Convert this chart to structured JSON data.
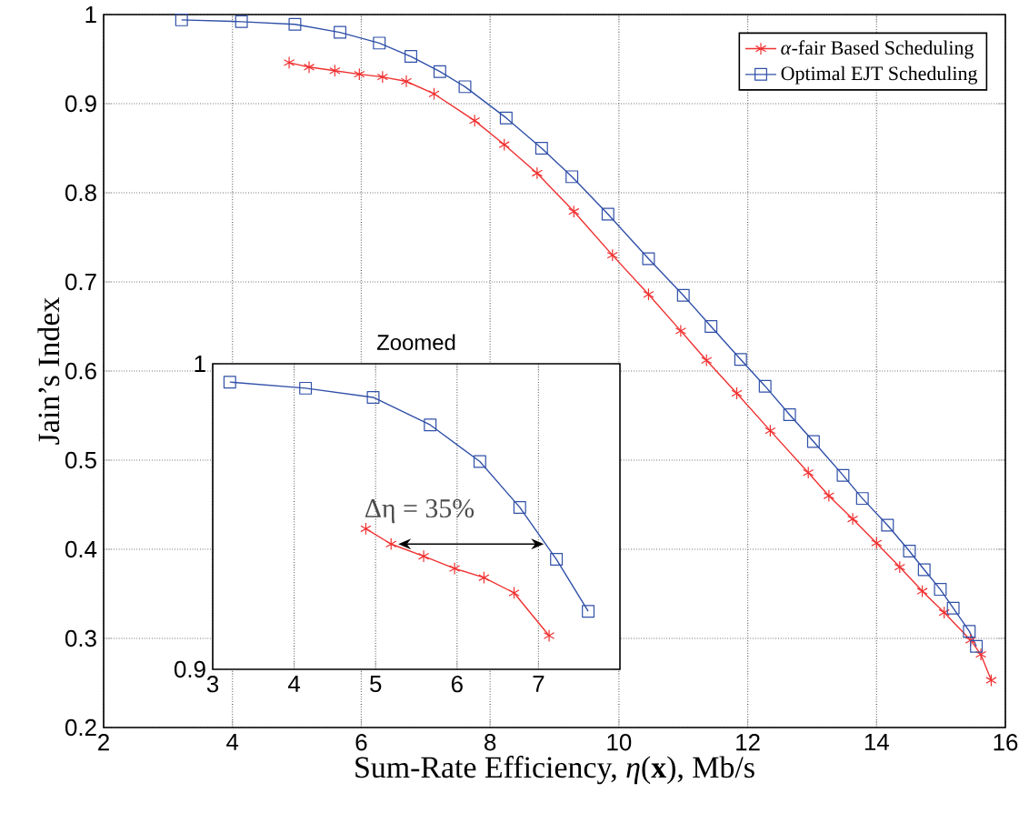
{
  "chart_data": [
    {
      "type": "line",
      "xlabel": "Sum-Rate Efficiency, *η*(**x**), Mb/s",
      "ylabel": "Jain’s Index",
      "xlim": [
        2,
        16
      ],
      "ylim": [
        0.2,
        1
      ],
      "xticks": [
        2,
        4,
        6,
        8,
        10,
        12,
        14,
        16
      ],
      "yticks": [
        0.2,
        0.3,
        0.4,
        0.5,
        0.6,
        0.7,
        0.8,
        0.9,
        1
      ],
      "grid": true,
      "legend": "top right",
      "series": [
        {
          "name": "*α*-fair Based Scheduling",
          "color": "#f03030",
          "marker": "cross",
          "x": [
            4.88,
            5.19,
            5.59,
            5.97,
            6.33,
            6.7,
            7.13,
            7.76,
            8.22,
            8.73,
            9.3,
            9.9,
            10.46,
            10.96,
            11.36,
            11.83,
            12.35,
            12.94,
            13.26,
            13.63,
            14.0,
            14.36,
            14.71,
            15.05,
            15.46,
            15.62,
            15.78
          ],
          "values": [
            0.946,
            0.941,
            0.937,
            0.933,
            0.93,
            0.925,
            0.911,
            0.881,
            0.854,
            0.822,
            0.779,
            0.73,
            0.686,
            0.645,
            0.612,
            0.575,
            0.533,
            0.486,
            0.46,
            0.434,
            0.407,
            0.38,
            0.353,
            0.329,
            0.298,
            0.282,
            0.253
          ]
        },
        {
          "name": "Optimal EJT Scheduling",
          "color": "#3050a8",
          "marker": "square",
          "x": [
            3.21,
            4.14,
            4.97,
            5.67,
            6.28,
            6.77,
            7.22,
            7.61,
            8.25,
            8.8,
            9.27,
            9.83,
            10.46,
            11.0,
            11.43,
            11.89,
            12.27,
            12.65,
            13.02,
            13.48,
            13.78,
            14.17,
            14.51,
            14.74,
            14.99,
            15.19,
            15.44,
            15.55
          ],
          "values": [
            0.994,
            0.992,
            0.989,
            0.98,
            0.968,
            0.953,
            0.936,
            0.919,
            0.884,
            0.85,
            0.818,
            0.776,
            0.726,
            0.685,
            0.65,
            0.613,
            0.583,
            0.551,
            0.521,
            0.483,
            0.457,
            0.427,
            0.398,
            0.377,
            0.355,
            0.334,
            0.308,
            0.291
          ]
        }
      ]
    },
    {
      "type": "line",
      "title": "Zoomed",
      "xlim": [
        3,
        8
      ],
      "ylim": [
        0.9,
        1
      ],
      "xticks": [
        3,
        4,
        5,
        6,
        7
      ],
      "yticks": [
        0.9,
        1
      ],
      "grid": "x",
      "annotations": [
        "Δη = 35%"
      ],
      "series": [
        {
          "color": "#f03030",
          "marker": "cross",
          "x": [
            4.88,
            5.19,
            5.59,
            5.97,
            6.33,
            6.7,
            7.13
          ],
          "values": [
            0.946,
            0.941,
            0.937,
            0.933,
            0.93,
            0.925,
            0.911
          ]
        },
        {
          "color": "#3050a8",
          "marker": "square",
          "x": [
            3.21,
            4.14,
            4.97,
            5.67,
            6.28,
            6.77,
            7.22,
            7.61
          ],
          "values": [
            0.994,
            0.992,
            0.989,
            0.98,
            0.968,
            0.953,
            0.936,
            0.919
          ]
        }
      ]
    }
  ]
}
